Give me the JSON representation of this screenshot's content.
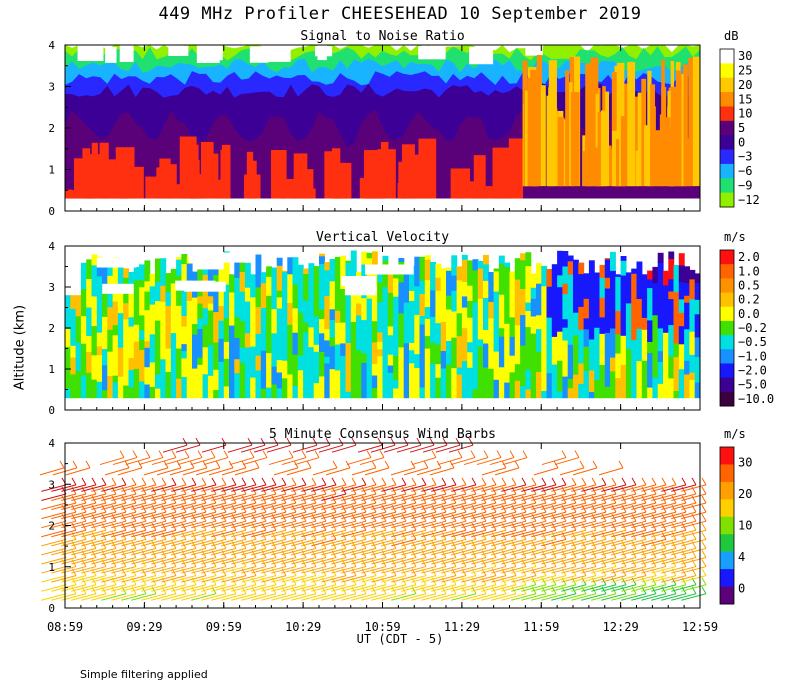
{
  "title": "449 MHz Profiler CHEESEHEAD 10 September 2019",
  "ylabel": "Altitude (km)",
  "xlabel": "UT  (CDT - 5)",
  "footnote": "Simple filtering applied",
  "chart_data": [
    {
      "type": "heatmap",
      "title": "Signal to Noise Ratio",
      "unit": "dB",
      "ylim": [
        0,
        4
      ],
      "yticks": [
        "0",
        "1",
        "2",
        "3",
        "4"
      ],
      "xticks": [
        "08:59",
        "09:29",
        "09:59",
        "10:29",
        "10:59",
        "11:29",
        "11:59",
        "12:29",
        "12:59"
      ],
      "legend": [
        "30",
        "25",
        "20",
        "15",
        "10",
        "5",
        "0",
        "−3",
        "−6",
        "−9",
        "−12"
      ],
      "colors": [
        "#ffffff",
        "#ffff00",
        "#ffc800",
        "#ff8c00",
        "#ff3010",
        "#5a0078",
        "#3c0096",
        "#2828ff",
        "#18b4ff",
        "#20e070",
        "#90f000"
      ],
      "layers": [
        {
          "color": "#90f000",
          "alt": [
            0.3,
            4.0
          ]
        },
        {
          "color": "#20e070",
          "alt": [
            0.3,
            3.8
          ]
        },
        {
          "color": "#18b4ff",
          "alt": [
            0.3,
            3.5
          ]
        },
        {
          "color": "#2828ff",
          "alt": [
            0.3,
            3.2
          ]
        },
        {
          "color": "#3c0096",
          "alt": [
            0.3,
            2.9
          ]
        },
        {
          "color": "#5a0078",
          "alt": [
            0.3,
            2.0
          ]
        }
      ]
    },
    {
      "type": "heatmap",
      "title": "Vertical Velocity",
      "unit": "m/s",
      "ylim": [
        0,
        4
      ],
      "yticks": [
        "0",
        "1",
        "2",
        "3",
        "4"
      ],
      "xticks": [
        "08:59",
        "09:29",
        "09:59",
        "10:29",
        "10:59",
        "11:29",
        "11:59",
        "12:29",
        "12:59"
      ],
      "legend": [
        "2.0",
        "1.0",
        "0.5",
        "0.2",
        "0.0",
        "−0.2",
        "−0.5",
        "−1.0",
        "−2.0",
        "−5.0",
        "−10.0"
      ],
      "colors": [
        "#ff1010",
        "#ff6400",
        "#ff9000",
        "#ffc000",
        "#ffff00",
        "#40e000",
        "#00e0e0",
        "#1890ff",
        "#1818ff",
        "#3c0096",
        "#3c0040"
      ]
    },
    {
      "type": "wind_barbs",
      "title": "5 Minute Consensus Wind Barbs",
      "unit": "m/s",
      "ylim": [
        0,
        4
      ],
      "yticks": [
        "0",
        "1",
        "2",
        "3",
        "4"
      ],
      "xticks": [
        "08:59",
        "09:29",
        "09:59",
        "10:29",
        "10:59",
        "11:29",
        "11:59",
        "12:29",
        "12:59"
      ],
      "legend": [
        "30",
        "20",
        "10",
        "4",
        "0"
      ],
      "colors": [
        "#ff1010",
        "#ff6400",
        "#ffa000",
        "#ffd000",
        "#80e000",
        "#20c840",
        "#18a0ff",
        "#1818ff",
        "#5a0078"
      ],
      "wind_speed_by_altitude_ms": [
        {
          "alt": 0.3,
          "speed": 9
        },
        {
          "alt": 1.0,
          "speed": 15
        },
        {
          "alt": 2.0,
          "speed": 20
        },
        {
          "alt": 3.0,
          "speed": 24
        },
        {
          "alt": 3.9,
          "speed": 30
        }
      ],
      "direction": "westerly (barbs point to lower-left)"
    }
  ]
}
